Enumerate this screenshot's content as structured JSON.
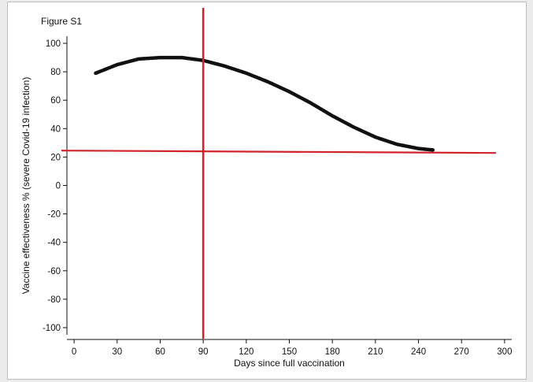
{
  "chart_data": {
    "type": "line",
    "title": "Figure S1",
    "xlabel": "Days since full vaccination",
    "ylabel": "Vaccine effectiveness % (severe Covid-19 infection)",
    "xlim": [
      -5,
      305
    ],
    "ylim": [
      -105,
      105
    ],
    "x_ticks": [
      0,
      30,
      60,
      90,
      120,
      150,
      180,
      210,
      240,
      270,
      300
    ],
    "y_ticks": [
      100,
      80,
      60,
      40,
      20,
      0,
      -20,
      -40,
      -60,
      -80,
      -100
    ],
    "x_tick_labels": [
      "0",
      "30",
      "60",
      "90",
      "120",
      "150",
      "180",
      "210",
      "240",
      "270",
      "300"
    ],
    "y_tick_labels": [
      "100",
      "80",
      "60",
      "40",
      "20",
      "0",
      "-20",
      "-40",
      "-60",
      "-80",
      "-100"
    ],
    "grid": false,
    "series": [
      {
        "x": [
          15,
          30,
          45,
          60,
          75,
          90,
          105,
          120,
          135,
          150,
          165,
          180,
          195,
          210,
          225,
          240,
          250
        ],
        "y": [
          79,
          85,
          89,
          90,
          90,
          88,
          84,
          79,
          73,
          66,
          58,
          49,
          41,
          34,
          29,
          26,
          25
        ],
        "color": "#111111"
      }
    ],
    "reference_lines": [
      {
        "orientation": "vertical",
        "x": 90,
        "color": "#d0232a"
      },
      {
        "orientation": "horizontal",
        "y": 24,
        "color": "#d0232a"
      }
    ]
  }
}
